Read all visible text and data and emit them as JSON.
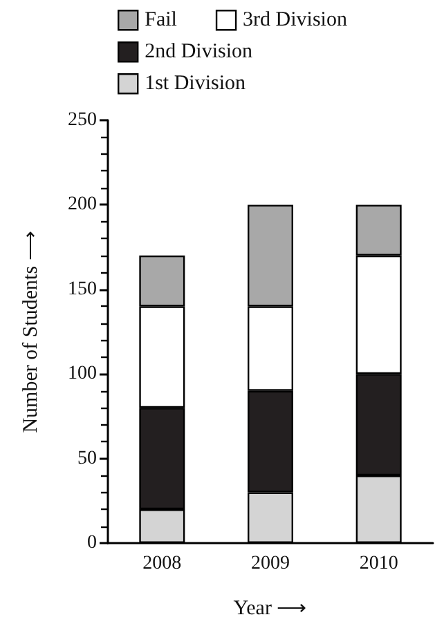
{
  "chart_data": {
    "type": "bar",
    "stacked": true,
    "xlabel": "Year ⟶",
    "ylabel": "Number of Students ⟶",
    "categories": [
      "2008",
      "2009",
      "2010"
    ],
    "series": [
      {
        "name": "1st Division",
        "color": "#d4d4d4",
        "values": [
          20,
          30,
          40
        ]
      },
      {
        "name": "2nd Division",
        "color": "#231f20",
        "values": [
          60,
          60,
          60
        ]
      },
      {
        "name": "3rd Division",
        "color": "#ffffff",
        "values": [
          60,
          50,
          70
        ]
      },
      {
        "name": "Fail",
        "color": "#a8a8a8",
        "values": [
          30,
          60,
          30
        ]
      }
    ],
    "ylim": [
      0,
      250
    ],
    "yticks": [
      0,
      50,
      100,
      150,
      200,
      250
    ],
    "grid": false,
    "legend": "top"
  }
}
